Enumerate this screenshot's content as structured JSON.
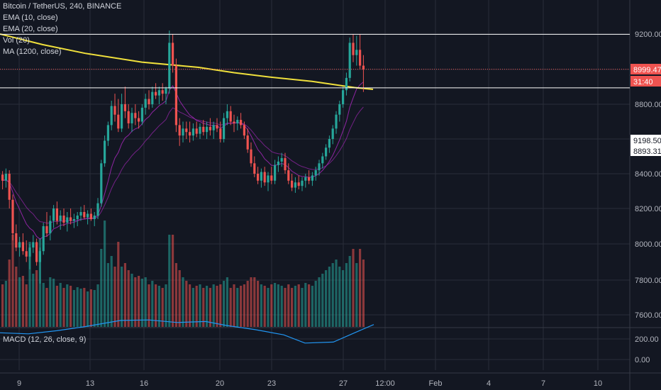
{
  "header": {
    "symbol": "Bitcoin / TetherUS, 240, BINANCE",
    "indicators": [
      "EMA (10, close)",
      "EMA (20, close)",
      "Vol (20)",
      "MA (1200, close)"
    ]
  },
  "macd_label": "MACD (12, 26, close, 9)",
  "price_axis": {
    "ticks": [
      "9200.00",
      "8800.00",
      "8400.00",
      "8200.00",
      "8000.00",
      "7800.00",
      "7600.00"
    ],
    "badges": [
      {
        "text": "8999.47",
        "color": "#ef5350"
      },
      {
        "text": "31:40",
        "color": "#ef5350"
      },
      {
        "text": "9198.50",
        "color": "#ffffff"
      },
      {
        "text": "8893.31",
        "color": "#ffffff"
      }
    ]
  },
  "macd_axis": {
    "ticks": [
      "200.00",
      "0.00"
    ]
  },
  "time_axis": {
    "ticks": [
      "9",
      "13",
      "16",
      "20",
      "23",
      "27",
      "12:00",
      "Feb",
      "4",
      "7",
      "10"
    ]
  },
  "colors": {
    "background": "#131722",
    "grid": "#2a2e39",
    "up": "#26a69a",
    "down": "#ef5350",
    "ma_1200": "#f0e03c",
    "ema": "#9c27b0",
    "macd": "#2196f3",
    "ref_line": "#ffffff"
  },
  "chart_data": {
    "type": "candlestick",
    "y_axis_labels": [
      9200,
      8800,
      8400,
      8200,
      8000,
      7800,
      7600
    ],
    "y_axis_nonlinear": true,
    "current_price": 8999.47,
    "candles": [
      {
        "o": 8395,
        "h": 8415,
        "l": 8310,
        "c": 8360
      },
      {
        "o": 8360,
        "h": 8430,
        "l": 8320,
        "c": 8400
      },
      {
        "o": 8400,
        "h": 8420,
        "l": 8200,
        "c": 8250
      },
      {
        "o": 8250,
        "h": 8280,
        "l": 8020,
        "c": 8060
      },
      {
        "o": 8060,
        "h": 8110,
        "l": 7960,
        "c": 7980
      },
      {
        "o": 7980,
        "h": 8040,
        "l": 7930,
        "c": 8010
      },
      {
        "o": 8010,
        "h": 8060,
        "l": 7940,
        "c": 7960
      },
      {
        "o": 7960,
        "h": 8020,
        "l": 7900,
        "c": 7930
      },
      {
        "o": 7930,
        "h": 8000,
        "l": 7860,
        "c": 7980
      },
      {
        "o": 7980,
        "h": 8050,
        "l": 7950,
        "c": 8010
      },
      {
        "o": 8010,
        "h": 8030,
        "l": 7880,
        "c": 7900
      },
      {
        "o": 7900,
        "h": 7980,
        "l": 7780,
        "c": 7960
      },
      {
        "o": 7960,
        "h": 8120,
        "l": 7940,
        "c": 8100
      },
      {
        "o": 8100,
        "h": 8180,
        "l": 8040,
        "c": 8060
      },
      {
        "o": 8060,
        "h": 8160,
        "l": 8020,
        "c": 8130
      },
      {
        "o": 8130,
        "h": 8220,
        "l": 8090,
        "c": 8200
      },
      {
        "o": 8200,
        "h": 8240,
        "l": 8110,
        "c": 8130
      },
      {
        "o": 8130,
        "h": 8190,
        "l": 8080,
        "c": 8160
      },
      {
        "o": 8160,
        "h": 8200,
        "l": 8100,
        "c": 8120
      },
      {
        "o": 8120,
        "h": 8180,
        "l": 8070,
        "c": 8150
      },
      {
        "o": 8150,
        "h": 8200,
        "l": 8110,
        "c": 8130
      },
      {
        "o": 8130,
        "h": 8170,
        "l": 8090,
        "c": 8140
      },
      {
        "o": 8140,
        "h": 8180,
        "l": 8100,
        "c": 8160
      },
      {
        "o": 8160,
        "h": 8210,
        "l": 8130,
        "c": 8180
      },
      {
        "o": 8180,
        "h": 8220,
        "l": 8140,
        "c": 8150
      },
      {
        "o": 8150,
        "h": 8190,
        "l": 8110,
        "c": 8170
      },
      {
        "o": 8170,
        "h": 8200,
        "l": 8130,
        "c": 8140
      },
      {
        "o": 8140,
        "h": 8180,
        "l": 8100,
        "c": 8160
      },
      {
        "o": 8160,
        "h": 8260,
        "l": 8140,
        "c": 8230
      },
      {
        "o": 8230,
        "h": 8480,
        "l": 8210,
        "c": 8460
      },
      {
        "o": 8460,
        "h": 8620,
        "l": 8440,
        "c": 8590
      },
      {
        "o": 8590,
        "h": 8700,
        "l": 8560,
        "c": 8680
      },
      {
        "o": 8680,
        "h": 8820,
        "l": 8650,
        "c": 8790
      },
      {
        "o": 8790,
        "h": 8860,
        "l": 8700,
        "c": 8740
      },
      {
        "o": 8740,
        "h": 8830,
        "l": 8640,
        "c": 8660
      },
      {
        "o": 8660,
        "h": 8860,
        "l": 8640,
        "c": 8800
      },
      {
        "o": 8800,
        "h": 8900,
        "l": 8720,
        "c": 8760
      },
      {
        "o": 8760,
        "h": 8800,
        "l": 8660,
        "c": 8690
      },
      {
        "o": 8690,
        "h": 8780,
        "l": 8640,
        "c": 8750
      },
      {
        "o": 8750,
        "h": 8800,
        "l": 8680,
        "c": 8720
      },
      {
        "o": 8720,
        "h": 8760,
        "l": 8660,
        "c": 8700
      },
      {
        "o": 8700,
        "h": 8800,
        "l": 8680,
        "c": 8780
      },
      {
        "o": 8780,
        "h": 8860,
        "l": 8740,
        "c": 8830
      },
      {
        "o": 8830,
        "h": 8880,
        "l": 8770,
        "c": 8800
      },
      {
        "o": 8800,
        "h": 8900,
        "l": 8780,
        "c": 8870
      },
      {
        "o": 8870,
        "h": 8920,
        "l": 8830,
        "c": 8850
      },
      {
        "o": 8850,
        "h": 8900,
        "l": 8800,
        "c": 8880
      },
      {
        "o": 8880,
        "h": 8920,
        "l": 8820,
        "c": 8860
      },
      {
        "o": 8860,
        "h": 8900,
        "l": 8800,
        "c": 8890
      },
      {
        "o": 8890,
        "h": 9220,
        "l": 8860,
        "c": 9150
      },
      {
        "o": 9150,
        "h": 9200,
        "l": 8980,
        "c": 9020
      },
      {
        "o": 9020,
        "h": 9060,
        "l": 8640,
        "c": 8680
      },
      {
        "o": 8680,
        "h": 8720,
        "l": 8560,
        "c": 8620
      },
      {
        "o": 8620,
        "h": 8700,
        "l": 8580,
        "c": 8660
      },
      {
        "o": 8660,
        "h": 8700,
        "l": 8600,
        "c": 8640
      },
      {
        "o": 8640,
        "h": 8700,
        "l": 8580,
        "c": 8620
      },
      {
        "o": 8620,
        "h": 8690,
        "l": 8590,
        "c": 8660
      },
      {
        "o": 8660,
        "h": 8700,
        "l": 8610,
        "c": 8630
      },
      {
        "o": 8630,
        "h": 8690,
        "l": 8600,
        "c": 8670
      },
      {
        "o": 8670,
        "h": 8710,
        "l": 8620,
        "c": 8640
      },
      {
        "o": 8640,
        "h": 8700,
        "l": 8600,
        "c": 8670
      },
      {
        "o": 8670,
        "h": 8720,
        "l": 8620,
        "c": 8650
      },
      {
        "o": 8650,
        "h": 8700,
        "l": 8600,
        "c": 8680
      },
      {
        "o": 8680,
        "h": 8720,
        "l": 8640,
        "c": 8660
      },
      {
        "o": 8660,
        "h": 8700,
        "l": 8580,
        "c": 8600
      },
      {
        "o": 8600,
        "h": 8750,
        "l": 8580,
        "c": 8720
      },
      {
        "o": 8720,
        "h": 8800,
        "l": 8680,
        "c": 8760
      },
      {
        "o": 8760,
        "h": 8790,
        "l": 8680,
        "c": 8700
      },
      {
        "o": 8700,
        "h": 8740,
        "l": 8640,
        "c": 8690
      },
      {
        "o": 8690,
        "h": 8730,
        "l": 8650,
        "c": 8710
      },
      {
        "o": 8710,
        "h": 8750,
        "l": 8660,
        "c": 8680
      },
      {
        "o": 8680,
        "h": 8700,
        "l": 8600,
        "c": 8620
      },
      {
        "o": 8620,
        "h": 8660,
        "l": 8520,
        "c": 8540
      },
      {
        "o": 8540,
        "h": 8580,
        "l": 8440,
        "c": 8460
      },
      {
        "o": 8460,
        "h": 8500,
        "l": 8380,
        "c": 8400
      },
      {
        "o": 8400,
        "h": 8440,
        "l": 8340,
        "c": 8360
      },
      {
        "o": 8360,
        "h": 8430,
        "l": 8320,
        "c": 8410
      },
      {
        "o": 8410,
        "h": 8440,
        "l": 8330,
        "c": 8350
      },
      {
        "o": 8350,
        "h": 8410,
        "l": 8300,
        "c": 8390
      },
      {
        "o": 8390,
        "h": 8440,
        "l": 8340,
        "c": 8360
      },
      {
        "o": 8360,
        "h": 8480,
        "l": 8340,
        "c": 8450
      },
      {
        "o": 8450,
        "h": 8500,
        "l": 8410,
        "c": 8470
      },
      {
        "o": 8470,
        "h": 8520,
        "l": 8440,
        "c": 8490
      },
      {
        "o": 8490,
        "h": 8520,
        "l": 8400,
        "c": 8420
      },
      {
        "o": 8420,
        "h": 8460,
        "l": 8340,
        "c": 8360
      },
      {
        "o": 8360,
        "h": 8400,
        "l": 8300,
        "c": 8320
      },
      {
        "o": 8320,
        "h": 8380,
        "l": 8290,
        "c": 8350
      },
      {
        "o": 8350,
        "h": 8390,
        "l": 8310,
        "c": 8330
      },
      {
        "o": 8330,
        "h": 8380,
        "l": 8300,
        "c": 8360
      },
      {
        "o": 8360,
        "h": 8400,
        "l": 8320,
        "c": 8380
      },
      {
        "o": 8380,
        "h": 8420,
        "l": 8340,
        "c": 8360
      },
      {
        "o": 8360,
        "h": 8410,
        "l": 8330,
        "c": 8390
      },
      {
        "o": 8390,
        "h": 8440,
        "l": 8360,
        "c": 8420
      },
      {
        "o": 8420,
        "h": 8480,
        "l": 8390,
        "c": 8460
      },
      {
        "o": 8460,
        "h": 8520,
        "l": 8430,
        "c": 8500
      },
      {
        "o": 8500,
        "h": 8570,
        "l": 8480,
        "c": 8550
      },
      {
        "o": 8550,
        "h": 8620,
        "l": 8520,
        "c": 8600
      },
      {
        "o": 8600,
        "h": 8680,
        "l": 8570,
        "c": 8660
      },
      {
        "o": 8660,
        "h": 8760,
        "l": 8630,
        "c": 8740
      },
      {
        "o": 8740,
        "h": 8820,
        "l": 8700,
        "c": 8800
      },
      {
        "o": 8800,
        "h": 8900,
        "l": 8780,
        "c": 8880
      },
      {
        "o": 8880,
        "h": 8980,
        "l": 8850,
        "c": 8950
      },
      {
        "o": 8950,
        "h": 9180,
        "l": 8930,
        "c": 9150
      },
      {
        "o": 9150,
        "h": 9200,
        "l": 9040,
        "c": 9080
      },
      {
        "o": 9080,
        "h": 9190,
        "l": 9020,
        "c": 9110
      },
      {
        "o": 9110,
        "h": 9200,
        "l": 9000,
        "c": 9020
      },
      {
        "o": 9020,
        "h": 9080,
        "l": 8870,
        "c": 8999.47
      }
    ],
    "volume": [
      60,
      65,
      95,
      130,
      85,
      70,
      72,
      60,
      120,
      75,
      80,
      125,
      62,
      55,
      70,
      68,
      58,
      62,
      55,
      60,
      58,
      52,
      56,
      54,
      55,
      50,
      53,
      52,
      60,
      110,
      150,
      90,
      100,
      85,
      120,
      85,
      90,
      80,
      75,
      70,
      72,
      68,
      70,
      60,
      65,
      60,
      58,
      55,
      60,
      130,
      130,
      90,
      80,
      70,
      65,
      60,
      55,
      58,
      60,
      55,
      58,
      55,
      60,
      58,
      60,
      65,
      70,
      55,
      60,
      55,
      58,
      60,
      65,
      70,
      70,
      65,
      60,
      58,
      55,
      60,
      62,
      60,
      58,
      55,
      60,
      55,
      58,
      60,
      55,
      62,
      60,
      58,
      65,
      70,
      75,
      80,
      85,
      90,
      95,
      85,
      80,
      90,
      100,
      110,
      90,
      110,
      95
    ],
    "ma_1200": [
      {
        "x": 0,
        "y": 9200
      },
      {
        "x": 60,
        "y": 9140
      },
      {
        "x": 120,
        "y": 9090
      },
      {
        "x": 200,
        "y": 9040
      },
      {
        "x": 280,
        "y": 9010
      },
      {
        "x": 330,
        "y": 8980
      },
      {
        "x": 380,
        "y": 8955
      },
      {
        "x": 440,
        "y": 8930
      },
      {
        "x": 500,
        "y": 8895
      },
      {
        "x": 526,
        "y": 8885
      }
    ],
    "macd": [
      {
        "x": 0,
        "y": 60
      },
      {
        "x": 40,
        "y": 50
      },
      {
        "x": 80,
        "y": 80
      },
      {
        "x": 120,
        "y": 120
      },
      {
        "x": 170,
        "y": 180
      },
      {
        "x": 210,
        "y": 185
      },
      {
        "x": 250,
        "y": 160
      },
      {
        "x": 290,
        "y": 170
      },
      {
        "x": 320,
        "y": 130
      },
      {
        "x": 360,
        "y": 90
      },
      {
        "x": 400,
        "y": 40
      },
      {
        "x": 430,
        "y": -40
      },
      {
        "x": 470,
        "y": -30
      },
      {
        "x": 500,
        "y": 60
      },
      {
        "x": 527,
        "y": 140
      }
    ]
  }
}
